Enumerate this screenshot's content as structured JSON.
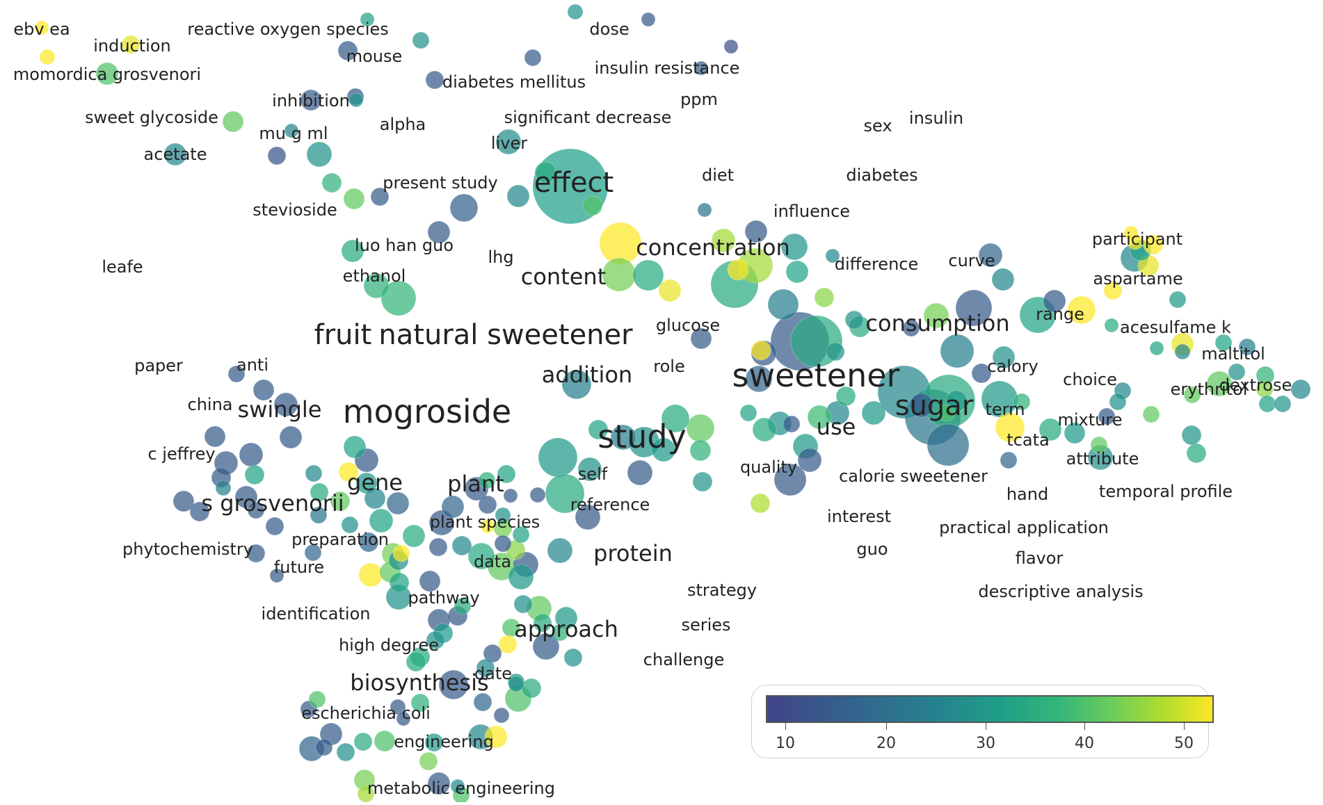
{
  "legend": {
    "colors": [
      "#414487",
      "#31688e",
      "#26828e",
      "#1f9e89",
      "#35b779",
      "#6ece58",
      "#b5de2b",
      "#fde725"
    ],
    "ticks": [
      "10",
      "20",
      "30",
      "40",
      "50"
    ]
  },
  "terms": [
    {
      "label": "ebv ea",
      "weight": 1
    },
    {
      "label": "induction",
      "weight": 1
    },
    {
      "label": "momordica grosvenori",
      "weight": 1
    },
    {
      "label": "reactive oxygen species",
      "weight": 1
    },
    {
      "label": "mouse",
      "weight": 1
    },
    {
      "label": "dose",
      "weight": 1
    },
    {
      "label": "diabetes mellitus",
      "weight": 1
    },
    {
      "label": "insulin resistance",
      "weight": 1
    },
    {
      "label": "ppm",
      "weight": 1
    },
    {
      "label": "inhibition",
      "weight": 1
    },
    {
      "label": "sweet glycoside",
      "weight": 1
    },
    {
      "label": "mu g ml",
      "weight": 1
    },
    {
      "label": "alpha",
      "weight": 1
    },
    {
      "label": "significant decrease",
      "weight": 1
    },
    {
      "label": "sex",
      "weight": 1
    },
    {
      "label": "insulin",
      "weight": 1
    },
    {
      "label": "liver",
      "weight": 1
    },
    {
      "label": "acetate",
      "weight": 1
    },
    {
      "label": "effect",
      "weight": 3
    },
    {
      "label": "diet",
      "weight": 1
    },
    {
      "label": "diabetes",
      "weight": 1
    },
    {
      "label": "present study",
      "weight": 1
    },
    {
      "label": "stevioside",
      "weight": 1
    },
    {
      "label": "influence",
      "weight": 1
    },
    {
      "label": "luo han guo",
      "weight": 1
    },
    {
      "label": "lhg",
      "weight": 1
    },
    {
      "label": "concentration",
      "weight": 2
    },
    {
      "label": "participant",
      "weight": 1
    },
    {
      "label": "leafe",
      "weight": 1
    },
    {
      "label": "difference",
      "weight": 1
    },
    {
      "label": "curve",
      "weight": 1
    },
    {
      "label": "ethanol",
      "weight": 1
    },
    {
      "label": "content",
      "weight": 2
    },
    {
      "label": "aspartame",
      "weight": 1
    },
    {
      "label": "range",
      "weight": 1
    },
    {
      "label": "consumption",
      "weight": 2
    },
    {
      "label": "glucose",
      "weight": 1
    },
    {
      "label": "acesulfame k",
      "weight": 1
    },
    {
      "label": "fruit",
      "weight": 3
    },
    {
      "label": "natural sweetener",
      "weight": 3
    },
    {
      "label": "maltitol",
      "weight": 1
    },
    {
      "label": "paper",
      "weight": 1
    },
    {
      "label": "anti",
      "weight": 1
    },
    {
      "label": "role",
      "weight": 1
    },
    {
      "label": "calory",
      "weight": 1
    },
    {
      "label": "addition",
      "weight": 2
    },
    {
      "label": "sweetener",
      "weight": 4
    },
    {
      "label": "choice",
      "weight": 1
    },
    {
      "label": "dextrose",
      "weight": 1
    },
    {
      "label": "erythritol",
      "weight": 1
    },
    {
      "label": "china",
      "weight": 1
    },
    {
      "label": "swingle",
      "weight": 2
    },
    {
      "label": "mogroside",
      "weight": 4
    },
    {
      "label": "sugar",
      "weight": 3
    },
    {
      "label": "term",
      "weight": 1
    },
    {
      "label": "use",
      "weight": 2
    },
    {
      "label": "mixture",
      "weight": 1
    },
    {
      "label": "study",
      "weight": 4
    },
    {
      "label": "tcata",
      "weight": 1
    },
    {
      "label": "c jeffrey",
      "weight": 1
    },
    {
      "label": "attribute",
      "weight": 1
    },
    {
      "label": "quality",
      "weight": 1
    },
    {
      "label": "self",
      "weight": 1
    },
    {
      "label": "calorie sweetener",
      "weight": 1
    },
    {
      "label": "gene",
      "weight": 2
    },
    {
      "label": "plant",
      "weight": 2
    },
    {
      "label": "hand",
      "weight": 1
    },
    {
      "label": "temporal profile",
      "weight": 1
    },
    {
      "label": "s grosvenorii",
      "weight": 2
    },
    {
      "label": "reference",
      "weight": 1
    },
    {
      "label": "interest",
      "weight": 1
    },
    {
      "label": "plant species",
      "weight": 1
    },
    {
      "label": "practical application",
      "weight": 1
    },
    {
      "label": "preparation",
      "weight": 1
    },
    {
      "label": "phytochemistry",
      "weight": 1
    },
    {
      "label": "guo",
      "weight": 1
    },
    {
      "label": "protein",
      "weight": 2
    },
    {
      "label": "flavor",
      "weight": 1
    },
    {
      "label": "data",
      "weight": 1
    },
    {
      "label": "future",
      "weight": 1
    },
    {
      "label": "strategy",
      "weight": 1
    },
    {
      "label": "descriptive analysis",
      "weight": 1
    },
    {
      "label": "pathway",
      "weight": 1
    },
    {
      "label": "identification",
      "weight": 1
    },
    {
      "label": "series",
      "weight": 1
    },
    {
      "label": "approach",
      "weight": 2
    },
    {
      "label": "high degree",
      "weight": 1
    },
    {
      "label": "challenge",
      "weight": 1
    },
    {
      "label": "biosynthesis",
      "weight": 2
    },
    {
      "label": "date",
      "weight": 1
    },
    {
      "label": "escherichia coli",
      "weight": 1
    },
    {
      "label": "engineering",
      "weight": 1
    },
    {
      "label": "metabolic engineering",
      "weight": 1
    }
  ],
  "nodes": [
    {
      "v": 52
    },
    {
      "v": 52
    },
    {
      "v": 50
    },
    {
      "v": 36
    },
    {
      "v": 28
    },
    {
      "v": 24
    },
    {
      "v": 12
    },
    {
      "v": 25
    },
    {
      "v": 12
    },
    {
      "v": 12
    },
    {
      "v": 10
    },
    {
      "v": 13
    },
    {
      "v": 12
    },
    {
      "v": 12
    },
    {
      "v": 12
    },
    {
      "v": 25
    },
    {
      "v": 38
    },
    {
      "v": 21
    },
    {
      "v": 11
    },
    {
      "v": 24
    },
    {
      "v": 32
    },
    {
      "v": 12
    },
    {
      "v": 38
    },
    {
      "v": 22
    },
    {
      "v": 23
    },
    {
      "v": 27
    },
    {
      "v": 36
    },
    {
      "v": 30
    },
    {
      "v": 13
    },
    {
      "v": 12
    },
    {
      "v": 22
    },
    {
      "v": 30
    },
    {
      "v": 32
    },
    {
      "v": 33
    },
    {
      "v": 52
    },
    {
      "v": 40
    },
    {
      "v": 44
    },
    {
      "v": 17
    },
    {
      "v": 25
    },
    {
      "v": 30
    },
    {
      "v": 20
    },
    {
      "v": 50
    },
    {
      "v": 12
    },
    {
      "v": 44
    },
    {
      "v": 30
    },
    {
      "v": 52
    },
    {
      "v": 12
    },
    {
      "v": 30
    },
    {
      "v": 22
    },
    {
      "v": 42
    },
    {
      "v": 52
    },
    {
      "v": 28
    },
    {
      "v": 12
    },
    {
      "v": 12
    },
    {
      "v": 14
    },
    {
      "v": 30
    },
    {
      "v": 24
    },
    {
      "v": 24
    },
    {
      "v": 12
    },
    {
      "v": 22
    },
    {
      "v": 40
    },
    {
      "v": 20
    },
    {
      "v": 12
    },
    {
      "v": 30
    },
    {
      "v": 18
    },
    {
      "v": 16
    },
    {
      "v": 26
    },
    {
      "v": 52
    },
    {
      "v": 24
    },
    {
      "v": 12
    },
    {
      "v": 14
    },
    {
      "v": 22
    },
    {
      "v": 28
    },
    {
      "v": 12
    },
    {
      "v": 52
    },
    {
      "v": 50
    },
    {
      "v": 26
    },
    {
      "v": 22
    },
    {
      "v": 52
    },
    {
      "v": 52
    },
    {
      "v": 52
    },
    {
      "v": 28
    },
    {
      "v": 52
    },
    {
      "v": 50
    },
    {
      "v": 22
    },
    {
      "v": 28
    },
    {
      "v": 30
    },
    {
      "v": 28
    },
    {
      "v": 20
    },
    {
      "v": 24
    },
    {
      "v": 32
    },
    {
      "v": 38
    },
    {
      "v": 38
    },
    {
      "v": 42
    },
    {
      "v": 28
    },
    {
      "v": 25
    },
    {
      "v": 22
    },
    {
      "v": 30
    },
    {
      "v": 25
    },
    {
      "v": 38
    },
    {
      "v": 22
    },
    {
      "v": 24
    },
    {
      "v": 12
    },
    {
      "v": 24
    },
    {
      "v": 38
    },
    {
      "v": 26
    },
    {
      "v": 30
    },
    {
      "v": 32
    },
    {
      "v": 14
    },
    {
      "v": 26
    },
    {
      "v": 36
    },
    {
      "v": 12
    },
    {
      "v": 26
    },
    {
      "v": 30
    },
    {
      "v": 22
    },
    {
      "v": 34
    },
    {
      "v": 12
    },
    {
      "v": 24
    },
    {
      "v": 30
    },
    {
      "v": 28
    },
    {
      "v": 26
    },
    {
      "v": 12
    },
    {
      "v": 12
    },
    {
      "v": 45
    },
    {
      "v": 25
    },
    {
      "v": 38
    },
    {
      "v": 32
    },
    {
      "v": 30
    },
    {
      "v": 24
    },
    {
      "v": 26
    },
    {
      "v": 12
    },
    {
      "v": 20
    },
    {
      "v": 28
    },
    {
      "v": 24
    },
    {
      "v": 20
    },
    {
      "v": 26
    },
    {
      "v": 30
    },
    {
      "v": 12
    },
    {
      "v": 22
    },
    {
      "v": 12
    },
    {
      "v": 26
    },
    {
      "v": 38
    },
    {
      "v": 32
    },
    {
      "v": 24
    },
    {
      "v": 36
    },
    {
      "v": 30
    },
    {
      "v": 26
    },
    {
      "v": 12
    },
    {
      "v": 12
    },
    {
      "v": 24
    },
    {
      "v": 12
    },
    {
      "v": 52
    },
    {
      "v": 38
    },
    {
      "v": 28
    },
    {
      "v": 52
    },
    {
      "v": 40
    },
    {
      "v": 14
    },
    {
      "v": 24
    },
    {
      "v": 38
    },
    {
      "v": 14
    },
    {
      "v": 12
    },
    {
      "v": 12
    },
    {
      "v": 12
    },
    {
      "v": 12
    },
    {
      "v": 12
    },
    {
      "v": 28
    },
    {
      "v": 12
    },
    {
      "v": 12
    },
    {
      "v": 12
    },
    {
      "v": 20
    },
    {
      "v": 12
    },
    {
      "v": 12
    },
    {
      "v": 12
    },
    {
      "v": 12
    },
    {
      "v": 12
    },
    {
      "v": 12
    },
    {
      "v": 12
    },
    {
      "v": 22
    },
    {
      "v": 30
    },
    {
      "v": 18
    },
    {
      "v": 52
    },
    {
      "v": 28
    },
    {
      "v": 12
    },
    {
      "v": 26
    },
    {
      "v": 22
    },
    {
      "v": 14
    },
    {
      "v": 28
    },
    {
      "v": 24
    },
    {
      "v": 30
    },
    {
      "v": 12
    },
    {
      "v": 14
    },
    {
      "v": 12
    },
    {
      "v": 12
    },
    {
      "v": 24
    },
    {
      "v": 40
    },
    {
      "v": 42
    },
    {
      "v": 12
    },
    {
      "v": 28
    },
    {
      "v": 32
    },
    {
      "v": 12
    },
    {
      "v": 52
    },
    {
      "v": 12
    },
    {
      "v": 22
    },
    {
      "v": 30
    },
    {
      "v": 12
    },
    {
      "v": 28
    },
    {
      "v": 38
    },
    {
      "v": 26
    },
    {
      "v": 24
    },
    {
      "v": 30
    },
    {
      "v": 12
    },
    {
      "v": 52
    },
    {
      "v": 14
    },
    {
      "v": 12
    },
    {
      "v": 24
    },
    {
      "v": 30
    },
    {
      "v": 30
    },
    {
      "v": 32
    },
    {
      "v": 12
    },
    {
      "v": 12
    },
    {
      "v": 36
    },
    {
      "v": 30
    },
    {
      "v": 12
    },
    {
      "v": 12
    },
    {
      "v": 14
    },
    {
      "v": 12
    },
    {
      "v": 36
    },
    {
      "v": 24
    },
    {
      "v": 40
    },
    {
      "v": 44
    },
    {
      "v": 12
    },
    {
      "v": 22
    },
    {
      "v": 36
    },
    {
      "v": 40
    },
    {
      "v": 26
    },
    {
      "v": 22
    },
    {
      "v": 52
    },
    {
      "v": 12
    },
    {
      "v": 36
    },
    {
      "v": 24
    },
    {
      "v": 12
    },
    {
      "v": 22
    },
    {
      "v": 24
    },
    {
      "v": 30
    }
  ]
}
